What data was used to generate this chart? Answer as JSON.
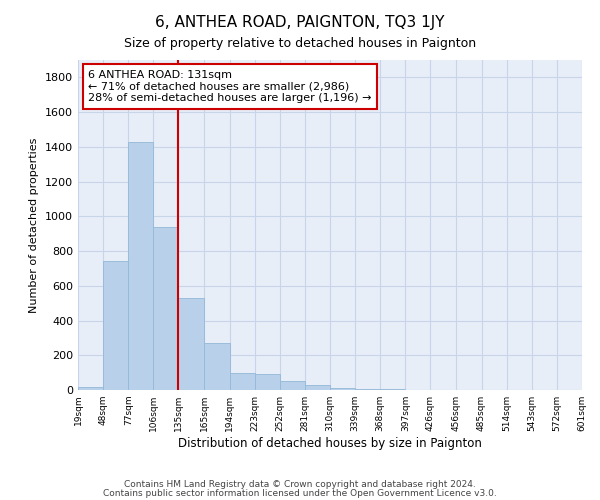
{
  "title": "6, ANTHEA ROAD, PAIGNTON, TQ3 1JY",
  "subtitle": "Size of property relative to detached houses in Paignton",
  "xlabel": "Distribution of detached houses by size in Paignton",
  "ylabel": "Number of detached properties",
  "bins": [
    19,
    48,
    77,
    106,
    135,
    165,
    194,
    223,
    252,
    281,
    310,
    339,
    368,
    397,
    426,
    456,
    485,
    514,
    543,
    572,
    601
  ],
  "bin_labels": [
    "19sqm",
    "48sqm",
    "77sqm",
    "106sqm",
    "135sqm",
    "165sqm",
    "194sqm",
    "223sqm",
    "252sqm",
    "281sqm",
    "310sqm",
    "339sqm",
    "368sqm",
    "397sqm",
    "426sqm",
    "456sqm",
    "485sqm",
    "514sqm",
    "543sqm",
    "572sqm",
    "601sqm"
  ],
  "counts": [
    20,
    740,
    1430,
    940,
    530,
    270,
    100,
    90,
    50,
    30,
    10,
    5,
    3,
    2,
    1,
    1,
    1,
    0,
    0,
    0
  ],
  "bar_color": "#b8d0ea",
  "bar_edge_color": "#93b8d8",
  "vline_x": 135,
  "vline_color": "#cc0000",
  "ylim": [
    0,
    1900
  ],
  "yticks": [
    0,
    200,
    400,
    600,
    800,
    1000,
    1200,
    1400,
    1600,
    1800
  ],
  "annotation_text": "6 ANTHEA ROAD: 131sqm\n← 71% of detached houses are smaller (2,986)\n28% of semi-detached houses are larger (1,196) →",
  "annotation_box_color": "#ffffff",
  "annotation_box_edge": "#cc0000",
  "footer_line1": "Contains HM Land Registry data © Crown copyright and database right 2024.",
  "footer_line2": "Contains public sector information licensed under the Open Government Licence v3.0.",
  "background_color": "#ffffff",
  "plot_bg_color": "#e8eef8",
  "grid_color": "#c8d4e8"
}
